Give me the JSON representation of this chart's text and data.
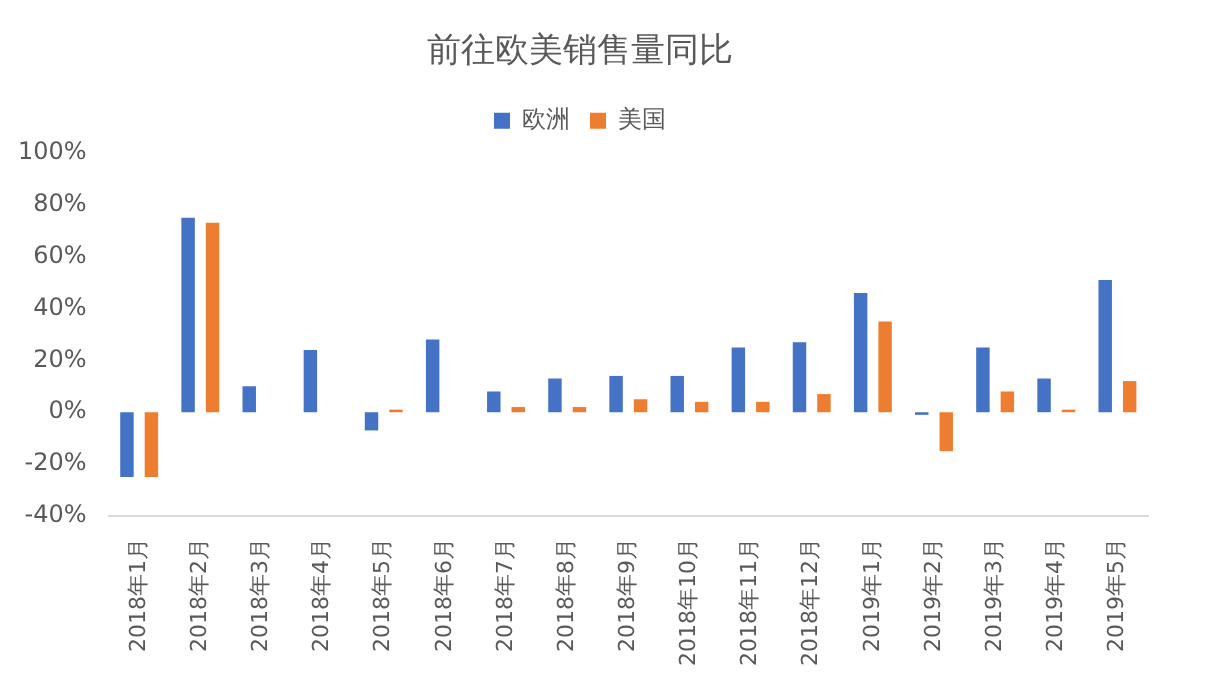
{
  "chart_data": {
    "type": "bar",
    "title": "前往欧美销售量同比",
    "categories": [
      "2018年1月",
      "2018年2月",
      "2018年3月",
      "2018年4月",
      "2018年5月",
      "2018年6月",
      "2018年7月",
      "2018年8月",
      "2018年9月",
      "2018年10月",
      "2018年11月",
      "2018年12月",
      "2019年1月",
      "2019年2月",
      "2019年3月",
      "2019年4月",
      "2019年5月"
    ],
    "series": [
      {
        "name": "欧洲",
        "color": "#4472c4",
        "values": [
          -25,
          75,
          10,
          24,
          -7,
          28,
          8,
          13,
          14,
          14,
          25,
          27,
          46,
          -1,
          25,
          13,
          51
        ]
      },
      {
        "name": "美国",
        "color": "#ed7d31",
        "values": [
          -25,
          73,
          0,
          0,
          1,
          0,
          2,
          2,
          5,
          4,
          4,
          7,
          35,
          -15,
          8,
          1,
          12
        ]
      }
    ],
    "ylim": [
      -40,
      100
    ],
    "yticks": [
      {
        "value": -40,
        "label": "-40%"
      },
      {
        "value": -20,
        "label": "-20%"
      },
      {
        "value": 0,
        "label": "0%"
      },
      {
        "value": 20,
        "label": "20%"
      },
      {
        "value": 40,
        "label": "40%"
      },
      {
        "value": 60,
        "label": "60%"
      },
      {
        "value": 80,
        "label": "80%"
      },
      {
        "value": 100,
        "label": "100%"
      }
    ],
    "grid": false,
    "legend": "top"
  }
}
